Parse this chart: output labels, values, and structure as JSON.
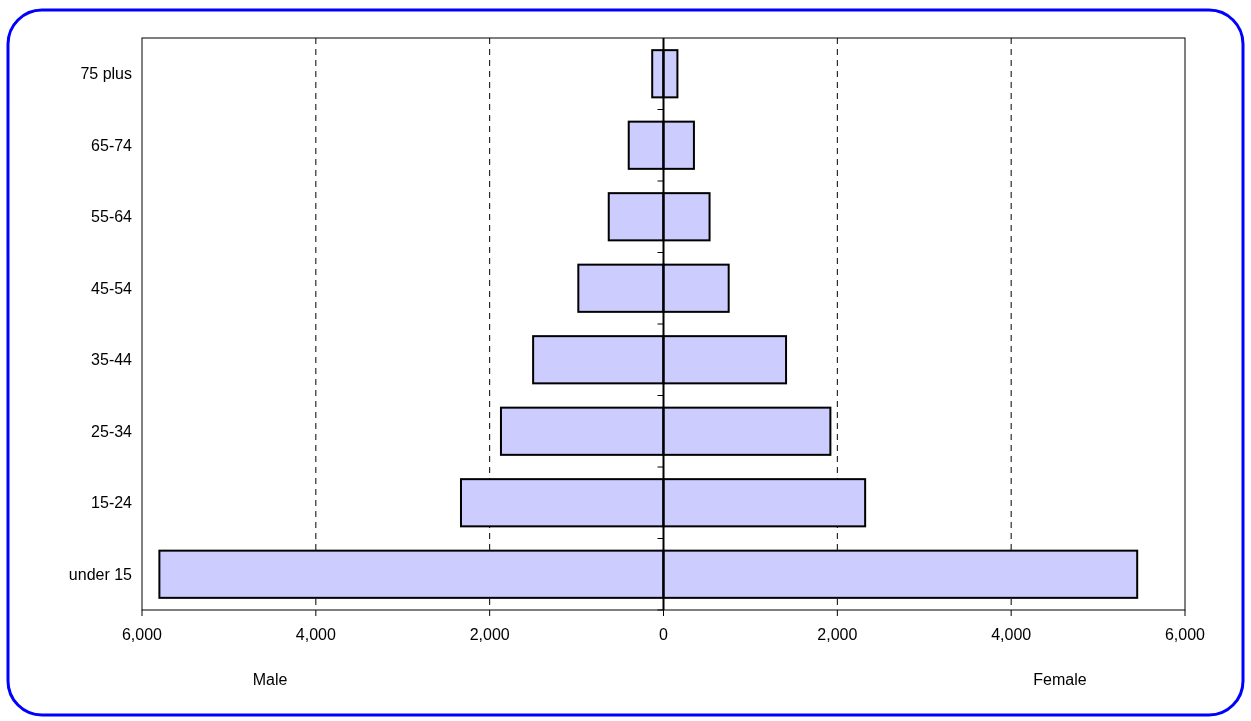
{
  "chart_data": {
    "type": "bar",
    "orientation": "horizontal",
    "stacked": true,
    "categories": [
      "75 plus",
      "65-74",
      "55-64",
      "45-54",
      "35-44",
      "25-34",
      "15-24",
      "under 15"
    ],
    "series": [
      {
        "color": "#ccccff",
        "values": [
          -130,
          -400,
          -630,
          -980,
          -1500,
          -1870,
          -2330,
          -5800
        ]
      },
      {
        "color": "#ccccff",
        "values": [
          160,
          350,
          530,
          750,
          1410,
          1920,
          2320,
          5450
        ]
      }
    ],
    "xlim": [
      -6000,
      6000
    ],
    "xticks": [
      {
        "value": -6000,
        "label": "6,000"
      },
      {
        "value": -4000,
        "label": "4,000"
      },
      {
        "value": -2000,
        "label": "2,000"
      },
      0,
      {
        "value": 2000,
        "label": "2,000"
      },
      {
        "value": 4000,
        "label": "4,000"
      },
      {
        "value": 6000,
        "label": "6,000"
      }
    ],
    "annotations": [
      "Male",
      "Female"
    ],
    "grid": "x",
    "line_style": "dashed"
  }
}
